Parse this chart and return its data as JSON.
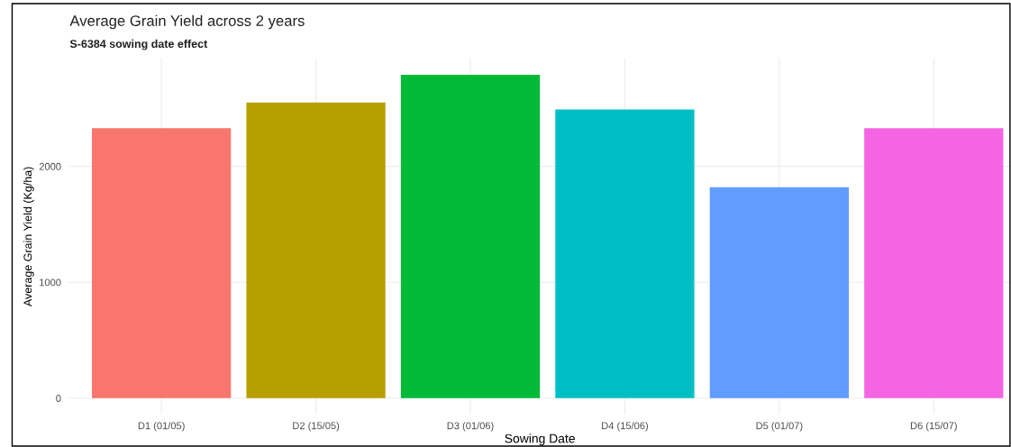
{
  "chart_data": {
    "type": "bar",
    "title": "Average Grain Yield across 2 years",
    "subtitle": "S-6384 sowing date effect",
    "xlabel": "Sowing Date",
    "ylabel": "Average Grain Yield (Kg/ha)",
    "categories": [
      "D1 (01/05)",
      "D2 (15/05)",
      "D3 (01/06)",
      "D4 (15/06)",
      "D5 (01/07)",
      "D6 (15/07)"
    ],
    "values": [
      2330,
      2550,
      2790,
      2490,
      1820,
      2330
    ],
    "colors": [
      "#f8766d",
      "#b79f00",
      "#00ba38",
      "#00bfc4",
      "#619cff",
      "#f564e3"
    ],
    "ylim": [
      -140,
      2930
    ],
    "yticks": [
      0,
      1000,
      2000
    ],
    "grid": true,
    "legend": false
  }
}
